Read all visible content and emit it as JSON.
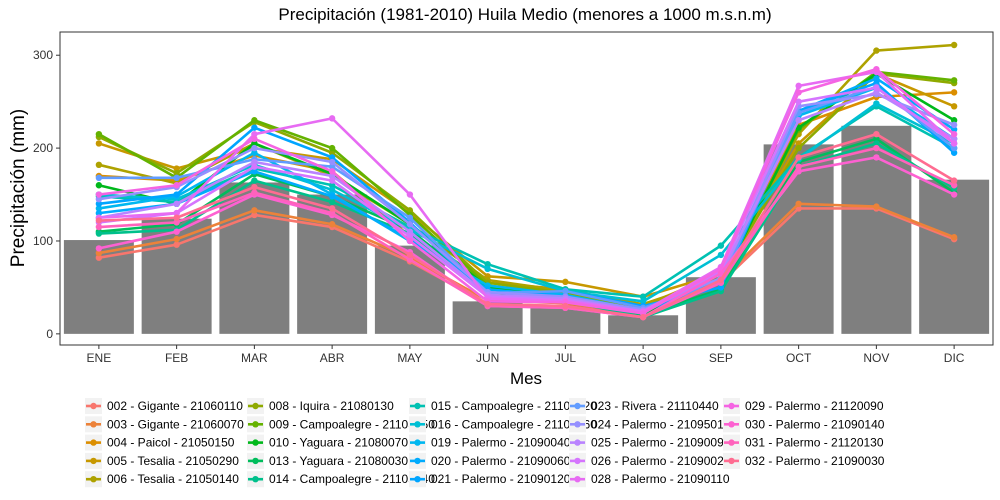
{
  "chart_data": {
    "type": "bar+line",
    "title": "Precipitación (1981-2010) Huila Medio (menores a 1000 m.s.n.m)",
    "xlabel": "Mes",
    "ylabel": "Precipitación (mm)",
    "ylim": [
      -12,
      325
    ],
    "yticks": [
      0,
      100,
      200,
      300
    ],
    "grid": false,
    "legend_position": "bottom",
    "categories": [
      "ENE",
      "FEB",
      "MAR",
      "ABR",
      "MAY",
      "JUN",
      "JUL",
      "AGO",
      "SEP",
      "OCT",
      "NOV",
      "DIC"
    ],
    "bar_values": [
      101,
      124,
      163,
      150,
      95,
      35,
      31,
      20,
      61,
      204,
      224,
      166
    ],
    "bar_color": "#7f7f7f",
    "series": [
      {
        "name": "002 - Gigante - 21060110",
        "color": "#F8766D",
        "values": [
          82,
          96,
          128,
          115,
          78,
          32,
          30,
          20,
          55,
          135,
          135,
          102
        ]
      },
      {
        "name": "003 - Gigante - 21060070",
        "color": "#EC8239",
        "values": [
          87,
          102,
          133,
          118,
          82,
          36,
          33,
          22,
          58,
          140,
          137,
          104
        ]
      },
      {
        "name": "004 - Paicol - 21050150",
        "color": "#DB8E00",
        "values": [
          170,
          165,
          192,
          175,
          105,
          55,
          48,
          30,
          65,
          225,
          255,
          260
        ]
      },
      {
        "name": "005 - Tesalia - 21050290",
        "color": "#C79800",
        "values": [
          205,
          178,
          200,
          188,
          130,
          62,
          56,
          40,
          65,
          205,
          280,
          245
        ]
      },
      {
        "name": "006 - Tesalia - 21050140",
        "color": "#AEA200",
        "values": [
          182,
          162,
          205,
          170,
          118,
          58,
          46,
          32,
          60,
          215,
          305,
          311
        ]
      },
      {
        "name": "008 - Iquira - 21080130",
        "color": "#8FAA00",
        "values": [
          212,
          173,
          228,
          195,
          133,
          55,
          44,
          28,
          60,
          200,
          280,
          270
        ]
      },
      {
        "name": "009 - Campoalegre - 21105050",
        "color": "#64B200",
        "values": [
          215,
          168,
          230,
          200,
          128,
          52,
          42,
          25,
          58,
          220,
          282,
          273
        ]
      },
      {
        "name": "010 - Yaguara - 21080070",
        "color": "#00B81B",
        "values": [
          160,
          140,
          205,
          172,
          118,
          50,
          42,
          22,
          55,
          222,
          280,
          230
        ]
      },
      {
        "name": "013 - Yaguara - 21080030",
        "color": "#00BD5C",
        "values": [
          110,
          118,
          172,
          148,
          112,
          45,
          38,
          20,
          48,
          185,
          210,
          152
        ]
      },
      {
        "name": "014 - Campoalegre - 21105040",
        "color": "#00C08B",
        "values": [
          108,
          112,
          165,
          142,
          108,
          42,
          36,
          18,
          46,
          180,
          205,
          157
        ]
      },
      {
        "name": "015 - Campoalegre - 21100120",
        "color": "#00C1B2",
        "values": [
          148,
          142,
          178,
          160,
          115,
          75,
          48,
          40,
          95,
          190,
          245,
          200
        ]
      },
      {
        "name": "016 - Campoalegre - 21105060",
        "color": "#00BFD4",
        "values": [
          150,
          145,
          182,
          155,
          112,
          70,
          46,
          35,
          85,
          188,
          248,
          205
        ]
      },
      {
        "name": "019 - Palermo - 21090040",
        "color": "#00B7F0",
        "values": [
          135,
          148,
          195,
          150,
          100,
          52,
          42,
          25,
          60,
          235,
          265,
          210
        ]
      },
      {
        "name": "020 - Palermo - 21090060",
        "color": "#00ABFD",
        "values": [
          130,
          140,
          175,
          148,
          102,
          48,
          40,
          24,
          58,
          240,
          275,
          220
        ]
      },
      {
        "name": "021 - Palermo - 21090120",
        "color": "#00A5FF",
        "values": [
          140,
          150,
          222,
          190,
          120,
          40,
          46,
          30,
          50,
          240,
          270,
          195
        ]
      },
      {
        "name": "023 - Rivera - 21110440",
        "color": "#619CFF",
        "values": [
          168,
          168,
          188,
          180,
          125,
          44,
          46,
          28,
          55,
          238,
          266,
          200
        ]
      },
      {
        "name": "024 - Palermo - 21095010",
        "color": "#9590FF",
        "values": [
          145,
          158,
          200,
          185,
          118,
          45,
          40,
          26,
          60,
          245,
          258,
          225
        ]
      },
      {
        "name": "025 - Palermo - 21090090",
        "color": "#B983FF",
        "values": [
          125,
          140,
          185,
          170,
          110,
          42,
          38,
          24,
          65,
          230,
          260,
          210
        ]
      },
      {
        "name": "026 - Palermo - 21090020",
        "color": "#D575FE",
        "values": [
          120,
          130,
          180,
          165,
          105,
          40,
          36,
          24,
          68,
          250,
          265,
          205
        ]
      },
      {
        "name": "028 - Palermo - 21090110",
        "color": "#E76BF3",
        "values": [
          125,
          130,
          215,
          232,
          150,
          38,
          35,
          24,
          72,
          267,
          282,
          205
        ]
      },
      {
        "name": "029 - Palermo - 21120090",
        "color": "#F564E3",
        "values": [
          150,
          160,
          210,
          175,
          100,
          35,
          34,
          22,
          70,
          260,
          285,
          215
        ]
      },
      {
        "name": "030 - Palermo - 21090140",
        "color": "#FD61D1",
        "values": [
          92,
          110,
          150,
          128,
          88,
          30,
          28,
          18,
          65,
          175,
          190,
          150
        ]
      },
      {
        "name": "031 - Palermo - 21120130",
        "color": "#FF62BC",
        "values": [
          115,
          120,
          152,
          130,
          80,
          30,
          28,
          18,
          55,
          180,
          200,
          160
        ]
      },
      {
        "name": "032 - Palermo - 21090030",
        "color": "#FF6C91",
        "values": [
          122,
          125,
          158,
          135,
          85,
          32,
          30,
          18,
          58,
          190,
          215,
          165
        ]
      }
    ]
  }
}
